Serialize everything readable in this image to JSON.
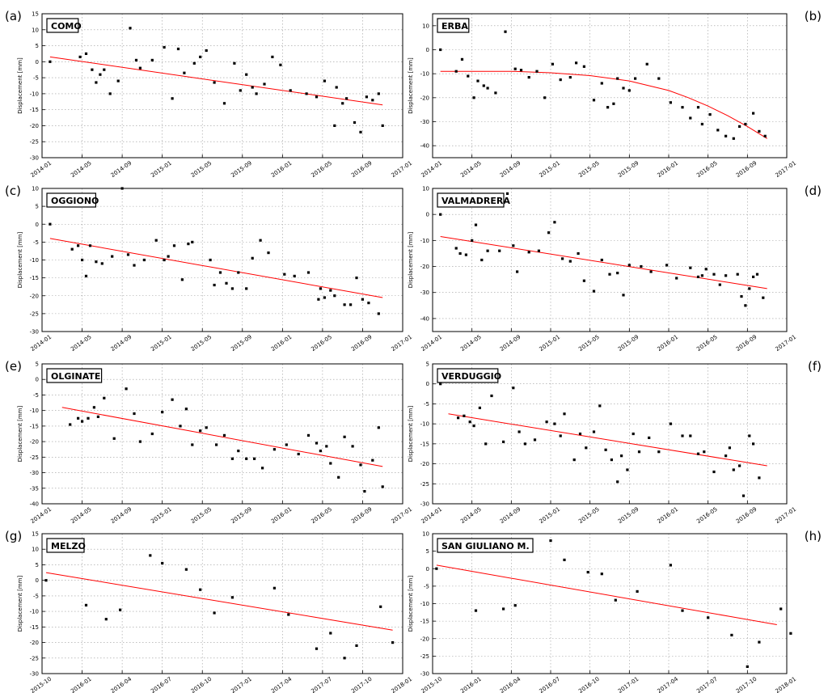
{
  "figure": {
    "ylabel": "Displacement [mm]"
  },
  "chart_data": [
    {
      "letter": "(a)",
      "title": "COMO",
      "type": "scatter",
      "xtick_labels": [
        "2014-01",
        "2014-05",
        "2014-09",
        "2015-01",
        "2015-05",
        "2015-09",
        "2016-01",
        "2016-05",
        "2016-09",
        "2017-01"
      ],
      "xlim": [
        0,
        9
      ],
      "ylim": [
        -30,
        15
      ],
      "yticks": [
        -30,
        -25,
        -20,
        -15,
        -10,
        -5,
        0,
        5,
        10,
        15
      ],
      "trend": {
        "type": "linear",
        "x": [
          0.2,
          8.5
        ],
        "y": [
          1.5,
          -13.5
        ],
        "color": "#ff0000"
      },
      "points_x": [
        0.2,
        0.95,
        1.1,
        1.25,
        1.35,
        1.45,
        1.55,
        1.7,
        1.9,
        2.2,
        2.35,
        2.45,
        2.75,
        3.05,
        3.25,
        3.4,
        3.55,
        3.8,
        3.95,
        4.1,
        4.3,
        4.55,
        4.8,
        4.95,
        5.1,
        5.25,
        5.35,
        5.55,
        5.75,
        5.95,
        6.2,
        6.6,
        6.85,
        7.05,
        7.3,
        7.35,
        7.5,
        7.6,
        7.8,
        7.95,
        8.1,
        8.25,
        8.4,
        8.5
      ],
      "points_y": [
        0,
        1.5,
        2.5,
        -2.5,
        -6.5,
        -4,
        -2.5,
        -10,
        -6,
        10.5,
        0.5,
        -2,
        0.5,
        4.5,
        -11.5,
        4,
        -3.5,
        -0.5,
        1.5,
        3.5,
        -6.5,
        -13,
        -0.5,
        -9,
        -4,
        -8,
        -10,
        -7,
        1.5,
        -1,
        -9,
        -10,
        -11,
        -6,
        -20,
        -8,
        -13,
        -11.5,
        -19,
        -22,
        -11,
        -12,
        -10,
        -20
      ]
    },
    {
      "letter": "(b)",
      "title": "ERBA",
      "type": "scatter",
      "xtick_labels": [
        "2014-01",
        "2014-05",
        "2014-09",
        "2015-01",
        "2015-05",
        "2015-09",
        "2016-01",
        "2016-05",
        "2016-09",
        "2017-01"
      ],
      "xlim": [
        0,
        9
      ],
      "ylim": [
        -45,
        15
      ],
      "yticks": [
        -40,
        -30,
        -20,
        -10,
        0,
        10
      ],
      "trend": {
        "type": "curve",
        "x": [
          0.2,
          1.0,
          2.0,
          3.0,
          4.0,
          5.0,
          6.0,
          6.5,
          7.0,
          7.5,
          8.0,
          8.5
        ],
        "y": [
          -9,
          -9,
          -9,
          -9.6,
          -10.8,
          -13,
          -17,
          -20,
          -23.5,
          -27.5,
          -32,
          -37
        ],
        "color": "#ff0000"
      },
      "points_x": [
        0.2,
        0.6,
        0.75,
        0.9,
        1.05,
        1.15,
        1.3,
        1.4,
        1.6,
        1.85,
        2.1,
        2.25,
        2.45,
        2.65,
        2.85,
        3.05,
        3.25,
        3.5,
        3.65,
        3.85,
        4.1,
        4.3,
        4.45,
        4.6,
        4.7,
        4.85,
        5.0,
        5.15,
        5.45,
        5.75,
        6.05,
        6.35,
        6.55,
        6.75,
        6.85,
        7.05,
        7.25,
        7.45,
        7.65,
        7.8,
        7.95,
        8.15,
        8.3,
        8.45
      ],
      "points_y": [
        0,
        -9,
        -4,
        -11,
        -20,
        -13,
        -15,
        -16,
        -18,
        7.5,
        -8,
        -8.5,
        -11.5,
        -9,
        -20,
        -6,
        -12.5,
        -11.5,
        -5.5,
        -7,
        -21,
        -14,
        -24,
        -22.5,
        -12,
        -16,
        -17,
        -12,
        -6,
        -12,
        -22,
        -24,
        -28.5,
        -24,
        -31,
        -27,
        -33.5,
        -36,
        -37,
        -32,
        -31,
        -26.5,
        -34,
        -36
      ]
    },
    {
      "letter": "(c)",
      "title": "OGGIONO",
      "type": "scatter",
      "xtick_labels": [
        "2014-01",
        "2014-05",
        "2014-09",
        "2015-01",
        "2015-05",
        "2015-09",
        "2016-01",
        "2016-05",
        "2016-09",
        "2017-01"
      ],
      "xlim": [
        0,
        9
      ],
      "ylim": [
        -30,
        10
      ],
      "yticks": [
        -30,
        -25,
        -20,
        -15,
        -10,
        -5,
        0,
        5,
        10
      ],
      "trend": {
        "type": "linear",
        "x": [
          0.2,
          8.5
        ],
        "y": [
          -4,
          -20.5
        ],
        "color": "#ff0000"
      },
      "points_x": [
        0.2,
        0.75,
        0.9,
        1.0,
        1.1,
        1.2,
        1.35,
        1.5,
        1.75,
        2.0,
        2.15,
        2.3,
        2.55,
        2.85,
        3.05,
        3.15,
        3.3,
        3.5,
        3.65,
        3.75,
        4.2,
        4.3,
        4.45,
        4.6,
        4.75,
        4.9,
        5.1,
        5.25,
        5.45,
        5.65,
        6.05,
        6.3,
        6.65,
        6.9,
        6.95,
        7.05,
        7.2,
        7.3,
        7.55,
        7.7,
        7.85,
        8.0,
        8.15,
        8.4
      ],
      "points_y": [
        0,
        -7,
        -6,
        -10,
        -14.5,
        -6,
        -10.5,
        -11,
        -9,
        10,
        -8.5,
        -11.5,
        -10,
        -4.5,
        -10,
        -9,
        -6,
        -15.5,
        -5.5,
        -5,
        -10,
        -17,
        -13.5,
        -16.5,
        -18,
        -13.5,
        -18,
        -9.5,
        -4.5,
        -8,
        -14,
        -14.5,
        -13.5,
        -21,
        -18,
        -20.5,
        -18.5,
        -20,
        -22.5,
        -22.5,
        -15,
        -21,
        -22,
        -25
      ]
    },
    {
      "letter": "(d)",
      "title": "VALMADRERA",
      "type": "scatter",
      "xtick_labels": [
        "2014-01",
        "2014-05",
        "2014-09",
        "2015-01",
        "2015-05",
        "2015-09",
        "2016-01",
        "2016-05",
        "2016-09",
        "2017-01"
      ],
      "xlim": [
        0,
        9
      ],
      "ylim": [
        -45,
        10
      ],
      "yticks": [
        -40,
        -30,
        -20,
        -10,
        0,
        10
      ],
      "trend": {
        "type": "linear",
        "x": [
          0.2,
          8.5
        ],
        "y": [
          -8.5,
          -28.5
        ],
        "color": "#ff0000"
      },
      "points_x": [
        0.2,
        0.6,
        0.7,
        0.85,
        1.0,
        1.1,
        1.25,
        1.4,
        1.7,
        1.9,
        2.05,
        2.15,
        2.45,
        2.7,
        2.95,
        3.1,
        3.3,
        3.5,
        3.7,
        3.85,
        4.1,
        4.3,
        4.5,
        4.7,
        4.85,
        5.0,
        5.3,
        5.55,
        5.95,
        6.2,
        6.55,
        6.75,
        6.85,
        6.95,
        7.15,
        7.3,
        7.45,
        7.75,
        7.85,
        7.95,
        8.05,
        8.15,
        8.25,
        8.4
      ],
      "points_y": [
        0,
        -13,
        -15,
        -15.5,
        -10,
        -4,
        -17.5,
        -14,
        -14,
        8,
        -12,
        -22,
        -14.5,
        -14,
        -7,
        -3,
        -17,
        -18,
        -15,
        -25.5,
        -29.5,
        -17.5,
        -23,
        -22.5,
        -31,
        -19.5,
        -20,
        -22,
        -19.5,
        -24.5,
        -20.5,
        -24,
        -23.5,
        -21,
        -23,
        -27,
        -23.5,
        -23,
        -31.5,
        -35,
        -28.5,
        -24,
        -23,
        -32
      ]
    },
    {
      "letter": "(e)",
      "title": "OLGINATE",
      "type": "scatter",
      "xtick_labels": [
        "2014-01",
        "2014-05",
        "2014-09",
        "2015-01",
        "2015-05",
        "2015-09",
        "2016-01",
        "2016-05",
        "2016-09",
        "2017-01"
      ],
      "xlim": [
        0,
        9
      ],
      "ylim": [
        -40,
        5
      ],
      "yticks": [
        -40,
        -35,
        -30,
        -25,
        -20,
        -15,
        -10,
        -5,
        0,
        5
      ],
      "trend": {
        "type": "linear",
        "x": [
          0.5,
          8.5
        ],
        "y": [
          -9,
          -28
        ],
        "color": "#ff0000"
      },
      "points_x": [
        0.7,
        0.9,
        1.0,
        1.15,
        1.3,
        1.4,
        1.55,
        1.8,
        2.1,
        2.3,
        2.45,
        2.75,
        3.0,
        3.25,
        3.45,
        3.6,
        3.75,
        3.95,
        4.1,
        4.35,
        4.55,
        4.75,
        4.9,
        5.1,
        5.3,
        5.5,
        5.8,
        6.1,
        6.4,
        6.65,
        6.85,
        6.95,
        7.1,
        7.2,
        7.4,
        7.55,
        7.75,
        7.95,
        8.05,
        8.25,
        8.4,
        8.5
      ],
      "points_y": [
        -14.5,
        -12.5,
        -13.5,
        -12.5,
        -9,
        -12,
        -6,
        -19,
        -3,
        -11,
        -20,
        -17.5,
        -10.5,
        -6.5,
        -15,
        -9.5,
        -21,
        -16.5,
        -15.5,
        -21,
        -18,
        -25.5,
        -23,
        -25.5,
        -25.5,
        -28.5,
        -22.5,
        -21,
        -24,
        -18,
        -20.5,
        -23,
        -21.5,
        -27,
        -31.5,
        -18.5,
        -21.5,
        -27.5,
        -36,
        -26,
        -15.5,
        -34.5
      ]
    },
    {
      "letter": "(f)",
      "title": "VERDUGGIO",
      "type": "scatter",
      "xtick_labels": [
        "2014-01",
        "2014-05",
        "2014-09",
        "2015-01",
        "2015-05",
        "2015-09",
        "2016-01",
        "2016-05",
        "2016-09",
        "2017-01"
      ],
      "xlim": [
        0,
        9
      ],
      "ylim": [
        -30,
        5
      ],
      "yticks": [
        -30,
        -25,
        -20,
        -15,
        -10,
        -5,
        0,
        5
      ],
      "trend": {
        "type": "linear",
        "x": [
          0.4,
          8.5
        ],
        "y": [
          -7.5,
          -20.5
        ],
        "color": "#ff0000"
      },
      "points_x": [
        0.2,
        0.65,
        0.8,
        0.95,
        1.05,
        1.2,
        1.35,
        1.5,
        1.8,
        2.05,
        2.2,
        2.35,
        2.6,
        2.9,
        3.1,
        3.25,
        3.35,
        3.6,
        3.75,
        3.9,
        4.1,
        4.25,
        4.4,
        4.55,
        4.7,
        4.8,
        4.95,
        5.1,
        5.25,
        5.5,
        5.75,
        6.05,
        6.35,
        6.55,
        6.75,
        6.9,
        7.15,
        7.45,
        7.55,
        7.65,
        7.8,
        7.9,
        8.05,
        8.15,
        8.3
      ],
      "points_y": [
        0,
        -8.5,
        -8,
        -9.5,
        -10.5,
        -6,
        -15,
        -3,
        -14.5,
        -1,
        -12,
        -15,
        -14,
        -9.5,
        -10,
        -13,
        -7.5,
        -19,
        -12.5,
        -16,
        -12,
        -5.5,
        -16.5,
        -19,
        -24.5,
        -18,
        -21.5,
        -12.5,
        -17,
        -13.5,
        -17,
        -10,
        -13,
        -13,
        -17.5,
        -17,
        -22,
        -18,
        -16,
        -21.5,
        -20.5,
        -28,
        -13,
        -15,
        -23.5
      ]
    },
    {
      "letter": "(g)",
      "title": "MELZO",
      "type": "scatter",
      "xtick_labels": [
        "2015-10",
        "2016-01",
        "2016-04",
        "2016-07",
        "2016-10",
        "2017-01",
        "2017-04",
        "2017-07",
        "2017-10",
        "2018-01"
      ],
      "xlim": [
        0,
        9
      ],
      "ylim": [
        -30,
        15
      ],
      "yticks": [
        -30,
        -25,
        -20,
        -15,
        -10,
        -5,
        0,
        5,
        10,
        15
      ],
      "trend": {
        "type": "linear",
        "x": [
          0.1,
          8.75
        ],
        "y": [
          2.5,
          -16
        ],
        "color": "#ff0000"
      },
      "points_x": [
        0.1,
        1.1,
        1.6,
        1.95,
        2.7,
        3.0,
        3.6,
        3.95,
        4.3,
        4.75,
        5.8,
        6.15,
        6.85,
        7.2,
        7.55,
        7.85,
        8.45,
        8.75
      ],
      "points_y": [
        0,
        -8,
        -12.5,
        -9.5,
        8,
        5.5,
        3.5,
        -3,
        -10.5,
        -5.5,
        -2.5,
        -11,
        -22,
        -17,
        -25,
        -21,
        -8.5,
        -20
      ]
    },
    {
      "letter": "(h)",
      "title": "SAN GIULIANO M.",
      "type": "scatter",
      "xtick_labels": [
        "2015-10",
        "2016-01",
        "2016-04",
        "2016-07",
        "2016-10",
        "2017-01",
        "2017-04",
        "2017-07",
        "2017-10",
        "2018-01"
      ],
      "xlim": [
        0,
        9
      ],
      "ylim": [
        -30,
        10
      ],
      "yticks": [
        -30,
        -25,
        -20,
        -15,
        -10,
        -5,
        0,
        5,
        10
      ],
      "trend": {
        "type": "linear",
        "x": [
          0.1,
          8.75
        ],
        "y": [
          1,
          -16
        ],
        "color": "#ff0000"
      },
      "points_x": [
        0.1,
        1.1,
        1.8,
        2.1,
        3.0,
        3.35,
        3.95,
        4.3,
        4.65,
        5.2,
        6.05,
        6.35,
        7.0,
        7.6,
        8.0,
        8.3,
        8.85,
        9.1
      ],
      "points_y": [
        0,
        -12,
        -11.5,
        -10.5,
        8,
        2.5,
        -1,
        -1.5,
        -9,
        -6.5,
        1,
        -12,
        -14,
        -19,
        -28,
        -21,
        -11.5,
        -18.5
      ]
    }
  ]
}
